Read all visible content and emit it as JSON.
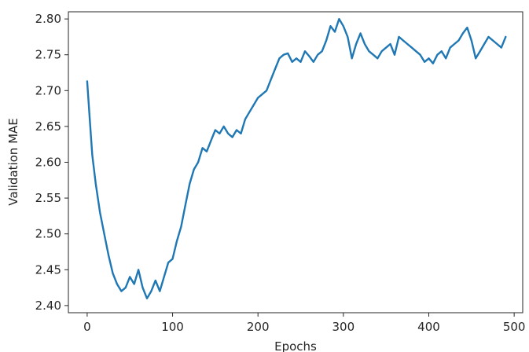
{
  "chart_data": {
    "type": "line",
    "title": "",
    "xlabel": "Epochs",
    "ylabel": "Validation MAE",
    "xlim": [
      -22,
      510
    ],
    "ylim": [
      2.39,
      2.81
    ],
    "xticks": [
      0,
      100,
      200,
      300,
      400,
      500
    ],
    "xtick_labels": [
      "0",
      "100",
      "200",
      "300",
      "400",
      "500"
    ],
    "yticks": [
      2.4,
      2.45,
      2.5,
      2.55,
      2.6,
      2.65,
      2.7,
      2.75,
      2.8
    ],
    "ytick_labels": [
      "2.40",
      "2.45",
      "2.50",
      "2.55",
      "2.60",
      "2.65",
      "2.70",
      "2.75",
      "2.80"
    ],
    "grid": false,
    "color": "#1f77b4",
    "series": [
      {
        "x": [
          0,
          3,
          6,
          10,
          15,
          20,
          25,
          30,
          35,
          40,
          45,
          50,
          55,
          60,
          65,
          70,
          75,
          80,
          85,
          90,
          95,
          100,
          105,
          110,
          115,
          120,
          125,
          130,
          135,
          140,
          145,
          150,
          155,
          160,
          165,
          170,
          175,
          180,
          185,
          190,
          195,
          200,
          205,
          210,
          215,
          220,
          225,
          230,
          235,
          240,
          245,
          250,
          255,
          260,
          265,
          270,
          275,
          280,
          285,
          290,
          295,
          300,
          305,
          310,
          315,
          320,
          325,
          330,
          335,
          340,
          345,
          350,
          355,
          360,
          365,
          370,
          375,
          380,
          385,
          390,
          395,
          400,
          405,
          410,
          415,
          420,
          425,
          430,
          435,
          440,
          445,
          450,
          455,
          460,
          465,
          470,
          475,
          480,
          485,
          490
        ],
        "y": [
          2.713,
          2.66,
          2.61,
          2.57,
          2.53,
          2.5,
          2.47,
          2.445,
          2.43,
          2.42,
          2.425,
          2.44,
          2.43,
          2.45,
          2.425,
          2.41,
          2.42,
          2.435,
          2.42,
          2.44,
          2.46,
          2.465,
          2.49,
          2.51,
          2.54,
          2.57,
          2.59,
          2.6,
          2.62,
          2.615,
          2.63,
          2.645,
          2.64,
          2.65,
          2.64,
          2.635,
          2.645,
          2.64,
          2.66,
          2.67,
          2.68,
          2.69,
          2.695,
          2.7,
          2.715,
          2.73,
          2.745,
          2.75,
          2.752,
          2.74,
          2.745,
          2.74,
          2.755,
          2.748,
          2.74,
          2.75,
          2.755,
          2.77,
          2.79,
          2.782,
          2.8,
          2.79,
          2.775,
          2.745,
          2.765,
          2.78,
          2.765,
          2.755,
          2.75,
          2.745,
          2.755,
          2.76,
          2.765,
          2.75,
          2.775,
          2.77,
          2.765,
          2.76,
          2.755,
          2.75,
          2.74,
          2.745,
          2.738,
          2.75,
          2.755,
          2.745,
          2.76,
          2.765,
          2.77,
          2.78,
          2.788,
          2.77,
          2.745,
          2.755,
          2.765,
          2.775,
          2.77,
          2.765,
          2.76,
          2.775
        ]
      }
    ]
  }
}
